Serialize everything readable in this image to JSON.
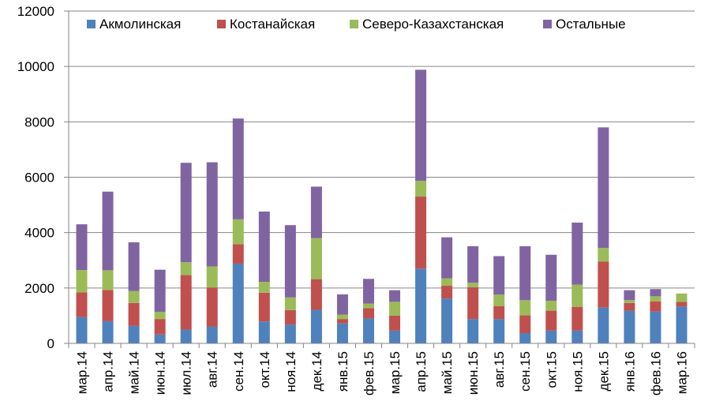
{
  "chart_data": {
    "type": "bar",
    "stacked": true,
    "categories": [
      "мар.14",
      "апр.14",
      "май.14",
      "июн.14",
      "июл.14",
      "авг.14",
      "сен.14",
      "окт.14",
      "ноя.14",
      "дек.14",
      "янв.15",
      "фев.15",
      "мар.15",
      "апр.15",
      "май.15",
      "июн.15",
      "авг.15",
      "сен.15",
      "окт.15",
      "ноя.15",
      "дек.15",
      "янв.16",
      "фев.16",
      "мар.16"
    ],
    "series": [
      {
        "name": "Акмолинская",
        "color": "#4F81BD",
        "values": [
          950,
          800,
          630,
          320,
          500,
          600,
          2880,
          790,
          680,
          1210,
          720,
          900,
          460,
          2700,
          1620,
          880,
          880,
          370,
          460,
          460,
          1290,
          1180,
          1150,
          1330
        ]
      },
      {
        "name": "Костанайская",
        "color": "#C0504D",
        "values": [
          890,
          1130,
          830,
          560,
          1970,
          1420,
          700,
          1040,
          520,
          1110,
          160,
          370,
          540,
          2600,
          460,
          1150,
          460,
          640,
          720,
          860,
          1660,
          280,
          370,
          170
        ]
      },
      {
        "name": "Северо-Казахстанская",
        "color": "#9BBB59",
        "values": [
          810,
          710,
          430,
          260,
          460,
          760,
          900,
          390,
          460,
          1480,
          160,
          170,
          500,
          570,
          270,
          160,
          420,
          550,
          360,
          800,
          500,
          100,
          180,
          300
        ]
      },
      {
        "name": "Остальные",
        "color": "#8064A2",
        "values": [
          1650,
          2840,
          1760,
          1520,
          3590,
          3760,
          3640,
          2540,
          2610,
          1860,
          730,
          890,
          420,
          4010,
          1480,
          1320,
          1390,
          1950,
          1660,
          2240,
          4350,
          360,
          260,
          0
        ]
      }
    ],
    "yticks": [
      0,
      2000,
      4000,
      6000,
      8000,
      10000,
      12000
    ],
    "ylim": [
      0,
      12000
    ],
    "grid": true,
    "legend_position": "top"
  }
}
